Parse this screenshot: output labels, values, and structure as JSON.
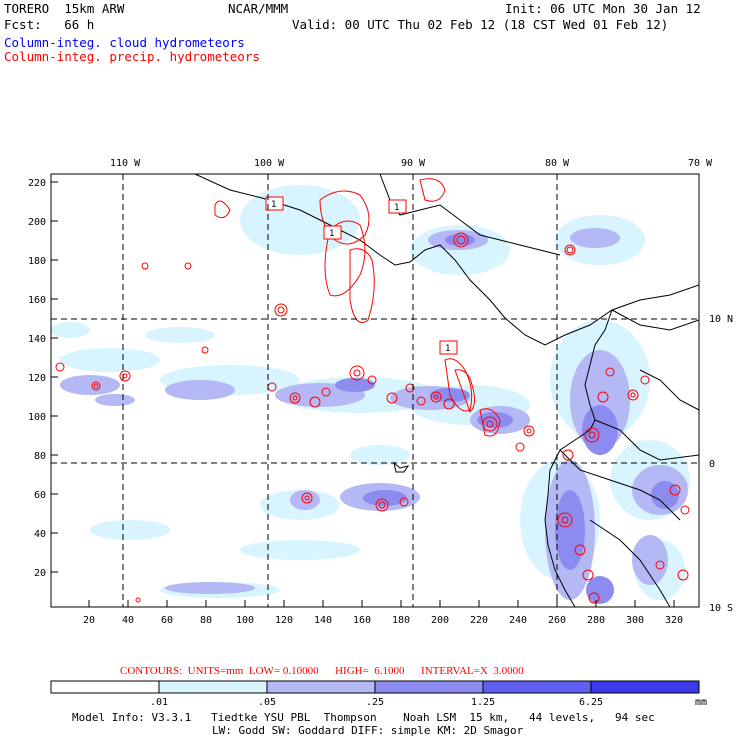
{
  "header": {
    "model_line": "TORERO  15km ARW",
    "fcst_line": "Fcst:   66 h",
    "center": "NCAR/MMM",
    "init": "Init: 06 UTC Mon 30 Jan 12",
    "valid": "Valid: 00 UTC Thu 02 Feb 12 (18 CST Wed 01 Feb 12)",
    "field1": "Column-integ. cloud hydrometeors",
    "field2": "Column-integ. precip. hydrometeors"
  },
  "colors": {
    "cloud_field": "#0000ff",
    "precip_field": "#ff0000",
    "shade_levels": [
      "#ffffff",
      "#d8f4ff",
      "#b4b8f4",
      "#8c8cf0",
      "#6060f0",
      "#3a3aea",
      "#1414f0"
    ]
  },
  "axes": {
    "top_lon_labels": [
      "110 W",
      "100 W",
      "90 W",
      "80 W",
      "70 W"
    ],
    "right_lat_labels": [
      "10 N",
      "0",
      "10 S"
    ],
    "left_ticks": [
      "220",
      "200",
      "180",
      "160",
      "140",
      "120",
      "100",
      "80",
      "60",
      "40",
      "20"
    ],
    "bottom_ticks": [
      "20",
      "40",
      "60",
      "80",
      "100",
      "120",
      "140",
      "160",
      "180",
      "200",
      "220",
      "240",
      "260",
      "280",
      "300",
      "320"
    ]
  },
  "contour_info": {
    "text": "CONTOURS:  UNITS=mm  LOW= 0.10000      HIGH=  6.1000      INTERVAL=X  3.0000"
  },
  "colorbar": {
    "labels": [
      ".01",
      ".05",
      ".25",
      "1.25",
      "6.25"
    ],
    "unit": "mm"
  },
  "boxes": [
    "1",
    "1",
    "1",
    "1"
  ],
  "footer": {
    "line1": "Model Info: V3.3.1   Tiedtke YSU PBL  Thompson    Noah LSM  15 km,   44 levels,   94 sec",
    "line2": "LW: Godd SW: Goddard DIFF: simple KM: 2D Smagor"
  }
}
